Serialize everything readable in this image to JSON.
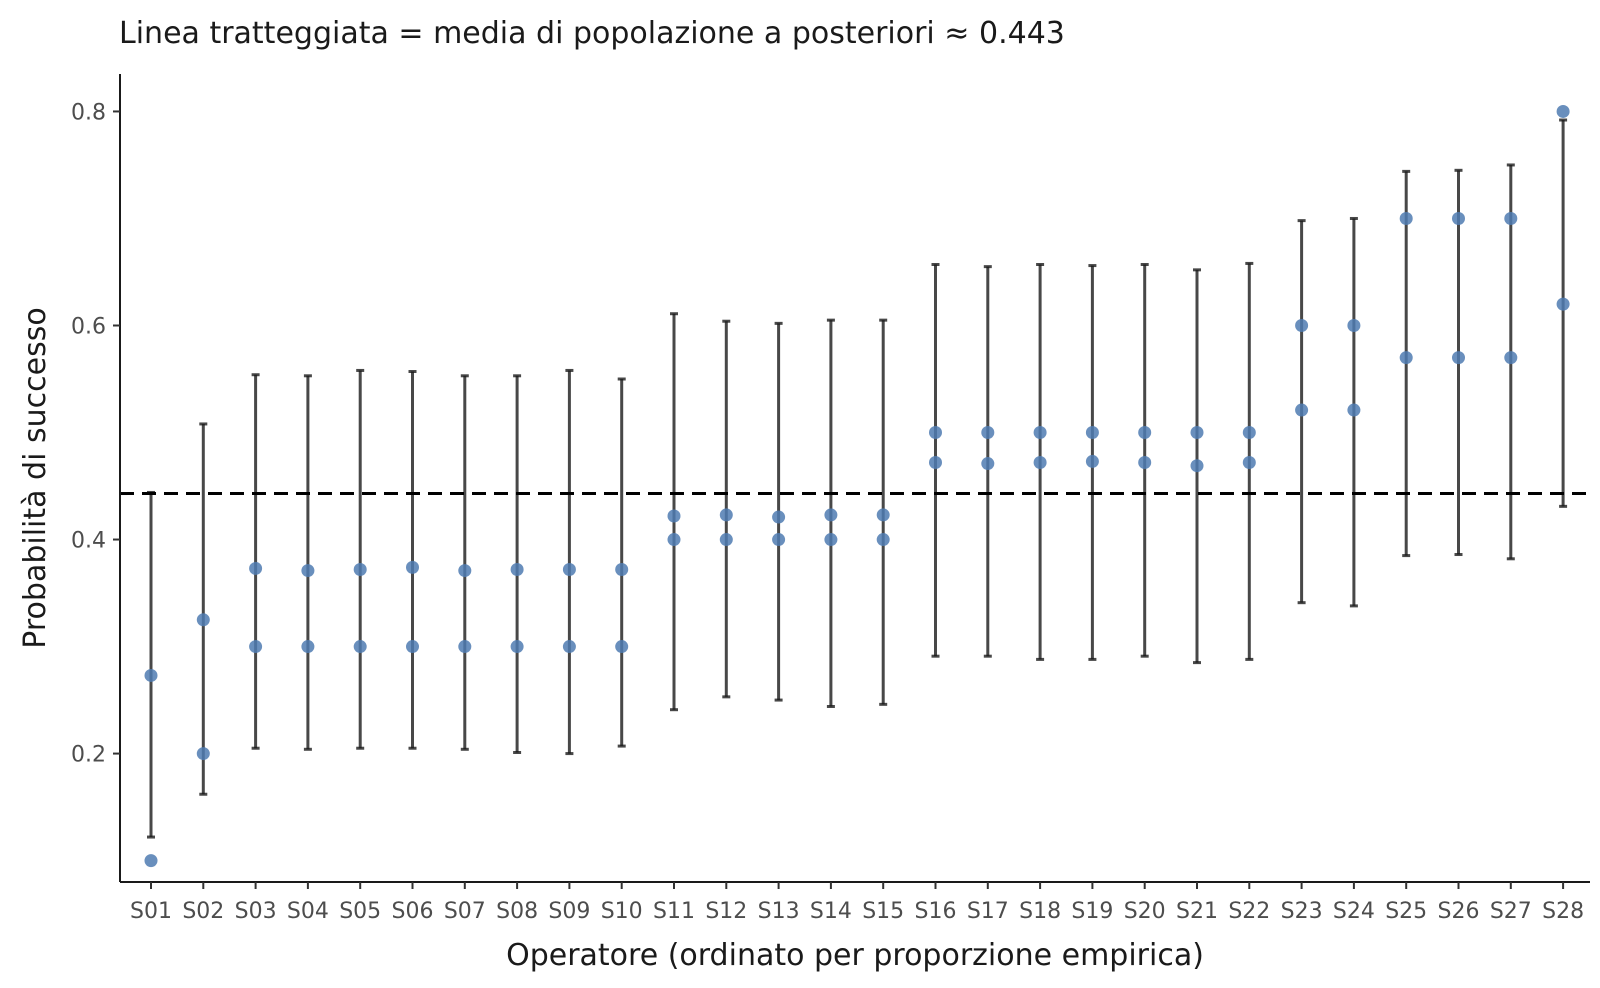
{
  "chart_data": {
    "type": "scatter",
    "title": "",
    "subtitle": "Linea tratteggiata = media di popolazione a posteriori ≈ 0.443",
    "xlabel": "Operatore (ordinato per proporzione empirica)",
    "ylabel": "Probabilità di successo",
    "ylim": [
      0.08,
      0.835
    ],
    "yticks": [
      0.2,
      0.4,
      0.6,
      0.8
    ],
    "ytick_labels": [
      "0.2",
      "0.4",
      "0.6",
      "0.8"
    ],
    "grid": false,
    "legend": "none",
    "reference_line": {
      "value": 0.443,
      "style": "dashed",
      "color": "#000000"
    },
    "point_color": "#4f7bb2",
    "categories": [
      "S01",
      "S02",
      "S03",
      "S04",
      "S05",
      "S06",
      "S07",
      "S08",
      "S09",
      "S10",
      "S11",
      "S12",
      "S13",
      "S14",
      "S15",
      "S16",
      "S17",
      "S18",
      "S19",
      "S20",
      "S21",
      "S22",
      "S23",
      "S24",
      "S25",
      "S26",
      "S27",
      "S28"
    ],
    "series": [
      {
        "values": [
          0.1,
          0.2,
          0.3,
          0.3,
          0.3,
          0.3,
          0.3,
          0.3,
          0.3,
          0.3,
          0.4,
          0.4,
          0.4,
          0.4,
          0.4,
          0.5,
          0.5,
          0.5,
          0.5,
          0.5,
          0.5,
          0.5,
          0.6,
          0.6,
          0.7,
          0.7,
          0.7,
          0.8
        ]
      },
      {
        "values": [
          0.273,
          0.325,
          0.373,
          0.371,
          0.372,
          0.374,
          0.371,
          0.372,
          0.372,
          0.372,
          0.422,
          0.423,
          0.421,
          0.423,
          0.423,
          0.472,
          0.471,
          0.472,
          0.473,
          0.472,
          0.469,
          0.472,
          0.521,
          0.521,
          0.57,
          0.57,
          0.57,
          0.62
        ]
      }
    ],
    "interval_lower": [
      0.122,
      0.162,
      0.205,
      0.204,
      0.205,
      0.205,
      0.204,
      0.201,
      0.2,
      0.207,
      0.241,
      0.253,
      0.25,
      0.244,
      0.246,
      0.291,
      0.291,
      0.288,
      0.288,
      0.291,
      0.285,
      0.288,
      0.341,
      0.338,
      0.385,
      0.386,
      0.382,
      0.431
    ],
    "interval_upper": [
      0.444,
      0.508,
      0.554,
      0.553,
      0.558,
      0.557,
      0.553,
      0.553,
      0.558,
      0.55,
      0.611,
      0.604,
      0.602,
      0.605,
      0.605,
      0.657,
      0.655,
      0.657,
      0.656,
      0.657,
      0.652,
      0.658,
      0.698,
      0.7,
      0.744,
      0.745,
      0.75,
      0.792
    ]
  }
}
